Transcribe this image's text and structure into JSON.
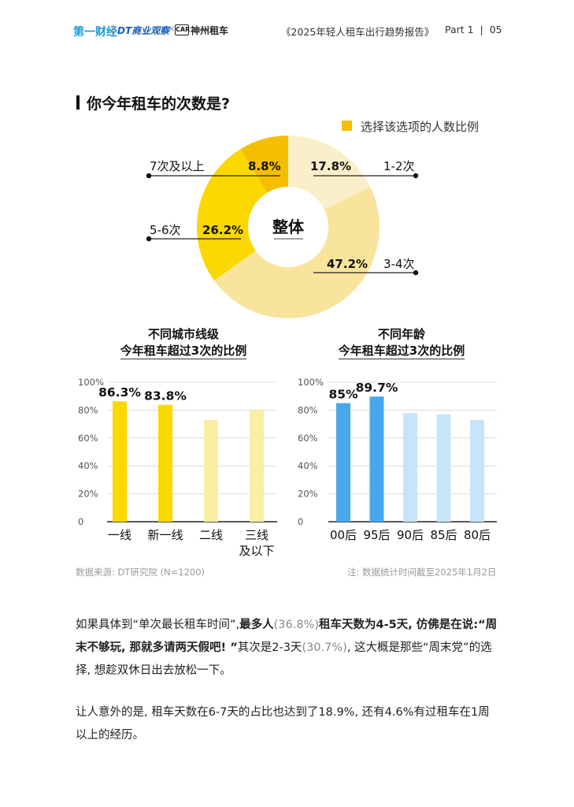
{
  "header": {
    "logo_yicai": "第一财经",
    "logo_dt": "DT商业观察",
    "logo_x": "×",
    "logo_car_mark": "CAR",
    "logo_car": "神州租车",
    "report_title": "《2025年轻人租车出行趋势报告》",
    "page_info": "Part 1  |  05"
  },
  "section_title": "你今年租车的次数是?",
  "legend_label": "选择该选项的人数比例",
  "chart_data": [
    {
      "type": "pie",
      "center_label": "整体",
      "categories": [
        "1-2次",
        "3-4次",
        "5-6次",
        "7次及以上"
      ],
      "values": [
        17.8,
        47.2,
        26.2,
        8.8
      ],
      "value_labels": [
        "17.8%",
        "47.2%",
        "26.2%",
        "8.8%"
      ],
      "colors": [
        "#f9efc9",
        "#f9e49d",
        "#fbd800",
        "#f6be00"
      ]
    },
    {
      "type": "bar",
      "title": "不同城市线级\n今年租车超过3次的比例",
      "categories": [
        "一线",
        "新一线",
        "二线",
        "三线\n及以下"
      ],
      "values": [
        86.3,
        83.8,
        73,
        80
      ],
      "value_labels": [
        "86.3%",
        "83.8%",
        "",
        ""
      ],
      "colors": [
        "#fbd800",
        "#fbd800",
        "#faeea6",
        "#faeea6"
      ],
      "yticks": [
        "100%",
        "80%",
        "60%",
        "40%",
        "20%",
        "0"
      ],
      "ylim": [
        0,
        100
      ]
    },
    {
      "type": "bar",
      "title": "不同年龄\n今年租车超过3次的比例",
      "categories": [
        "00后",
        "95后",
        "90后",
        "85后",
        "80后"
      ],
      "values": [
        85,
        89.7,
        78,
        77,
        73
      ],
      "value_labels": [
        "85%",
        "89.7%",
        "",
        "",
        ""
      ],
      "colors": [
        "#49a7ee",
        "#49a7ee",
        "#c6e5fa",
        "#c6e5fa",
        "#c6e5fa"
      ],
      "yticks": [
        "100%",
        "80%",
        "60%",
        "40%",
        "20%",
        "0"
      ],
      "ylim": [
        0,
        100
      ]
    }
  ],
  "source": "数据来源: DT研究院 (N=1200)",
  "note": "注: 数据统计时间截至2025年1月2日",
  "paragraph1": {
    "p1": "如果具体到“单次最长租车时间”,",
    "p2": "最多人",
    "p3": "(36.8%)",
    "p4": "租车天数为4-5天, 仿佛是在说:",
    "p5": "“周末不够玩, 那就多请两天假吧! ”",
    "p6": "其次是2-3天",
    "p7": "(30.7%)",
    "p8": ", 这大概是那些“周末党”的选择, 想趁双休日出去放松一下。"
  },
  "paragraph2": "让人意外的是, 租车天数在6-7天的占比也达到了18.9%, 还有4.6%有过租车在1周以上的经历。"
}
